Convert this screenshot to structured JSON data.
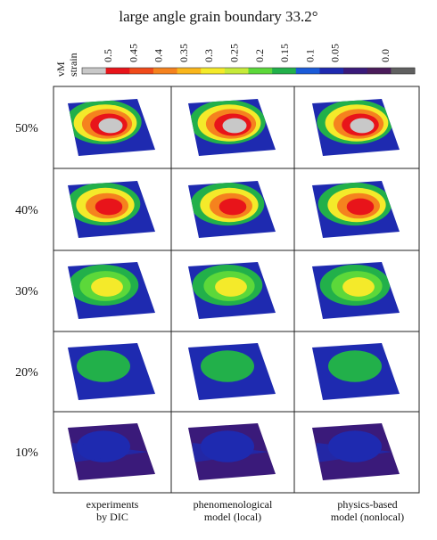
{
  "title": "large angle grain boundary 33.2°",
  "colorbar": {
    "label": [
      "vM",
      "strain"
    ],
    "ticks": [
      "0.5",
      "0.45",
      "0.4",
      "0.35",
      "0.3",
      "0.25",
      "0.2",
      "0.15",
      "0.1",
      "0.05",
      "0.0"
    ]
  },
  "rows": [
    "50%",
    "40%",
    "30%",
    "20%",
    "10%"
  ],
  "columns": [
    [
      "experiments",
      "by DIC"
    ],
    [
      "phenomenological",
      "model (local)"
    ],
    [
      "physics-based",
      "model (nonlocal)"
    ]
  ]
}
